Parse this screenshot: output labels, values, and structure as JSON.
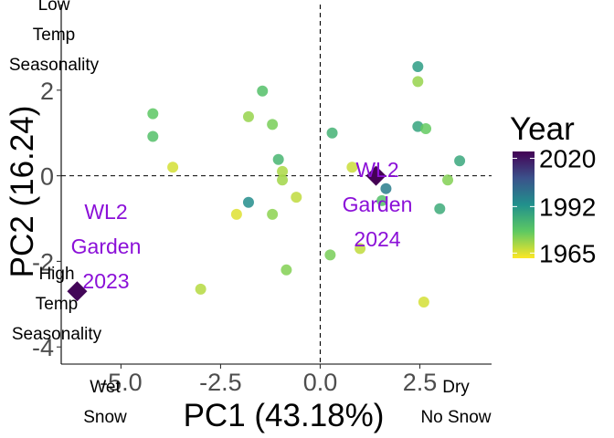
{
  "chart_data": {
    "type": "scatter",
    "xlabel": "PC1 (43.18%)",
    "ylabel": "PC2 (16.24)",
    "xlim": [
      -6.5,
      4.3
    ],
    "ylim": [
      -4.4,
      4.0
    ],
    "x_ticks": [
      -5.0,
      -2.5,
      0.0,
      2.5
    ],
    "x_tick_labels": [
      "-5.0",
      "-2.5",
      "0.0",
      "2.5"
    ],
    "y_ticks": [
      -4,
      -2,
      0,
      2
    ],
    "y_tick_labels": [
      "-4",
      "-2",
      "0",
      "2"
    ],
    "reference_lines": {
      "x": 0,
      "y": 0,
      "style": "dashed"
    },
    "grid": false,
    "legend": {
      "title": "Year",
      "type": "colorbar",
      "position": "right",
      "range": [
        1962,
        2024
      ],
      "ticks": [
        2020,
        1992,
        1965
      ],
      "tick_labels": [
        "2020",
        "1992",
        "1965"
      ],
      "palette": [
        "#fde725",
        "#5ec962",
        "#21918c",
        "#3b528b",
        "#440154"
      ]
    },
    "corner_annotations": [
      {
        "id": "top-left",
        "lines": [
          "Low",
          "Temp",
          "Seasonality"
        ]
      },
      {
        "id": "bottom-left",
        "lines": [
          "High",
          "Temp",
          "Seasonality"
        ]
      },
      {
        "id": "x-left",
        "lines": [
          "Wet",
          "Snow"
        ]
      },
      {
        "id": "x-right",
        "lines": [
          "Dry",
          "No Snow"
        ]
      }
    ],
    "highlight_color": "#8b10d8",
    "highlights": [
      {
        "x": -6.1,
        "y": -2.7,
        "year": 2023,
        "label_lines": [
          "WL2",
          "Garden",
          "2023"
        ]
      },
      {
        "x": 1.4,
        "y": 0.0,
        "year": 2024,
        "label_lines": [
          "WL2",
          "Garden",
          "2024"
        ]
      }
    ],
    "points": [
      {
        "x": -4.2,
        "y": 1.45,
        "year": 1978
      },
      {
        "x": -4.2,
        "y": 0.92,
        "year": 1980
      },
      {
        "x": -3.7,
        "y": 0.2,
        "year": 1966
      },
      {
        "x": -3.0,
        "y": -2.65,
        "year": 1969
      },
      {
        "x": -2.1,
        "y": -0.9,
        "year": 1965
      },
      {
        "x": -1.8,
        "y": 1.38,
        "year": 1972
      },
      {
        "x": -1.8,
        "y": -0.62,
        "year": 1994
      },
      {
        "x": -1.45,
        "y": 1.98,
        "year": 1980
      },
      {
        "x": -1.2,
        "y": 1.2,
        "year": 1975
      },
      {
        "x": -1.2,
        "y": -0.9,
        "year": 1973
      },
      {
        "x": -1.05,
        "y": 0.38,
        "year": 1983
      },
      {
        "x": -0.95,
        "y": 0.1,
        "year": 1970
      },
      {
        "x": -0.95,
        "y": -0.1,
        "year": 1971
      },
      {
        "x": -0.85,
        "y": -2.2,
        "year": 1974
      },
      {
        "x": -0.6,
        "y": -0.5,
        "year": 1968
      },
      {
        "x": 0.25,
        "y": -1.85,
        "year": 1975
      },
      {
        "x": 0.3,
        "y": 1.0,
        "year": 1984
      },
      {
        "x": 0.8,
        "y": 0.2,
        "year": 1967
      },
      {
        "x": 1.0,
        "y": -1.7,
        "year": 1968
      },
      {
        "x": 1.55,
        "y": -0.58,
        "year": 1980
      },
      {
        "x": 1.65,
        "y": -0.3,
        "year": 1998
      },
      {
        "x": 2.45,
        "y": 2.55,
        "year": 1990
      },
      {
        "x": 2.45,
        "y": 2.2,
        "year": 1972
      },
      {
        "x": 2.45,
        "y": 1.15,
        "year": 1988
      },
      {
        "x": 2.65,
        "y": 1.1,
        "year": 1977
      },
      {
        "x": 2.6,
        "y": -2.95,
        "year": 1966
      },
      {
        "x": 3.0,
        "y": -0.77,
        "year": 1986
      },
      {
        "x": 3.2,
        "y": -0.1,
        "year": 1974
      },
      {
        "x": 3.5,
        "y": 0.35,
        "year": 1987
      }
    ]
  }
}
